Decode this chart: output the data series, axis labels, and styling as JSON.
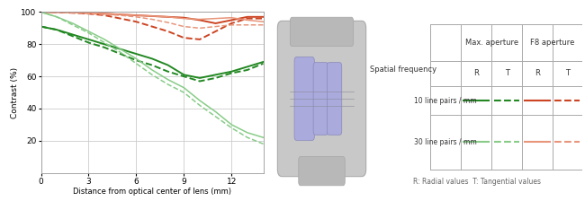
{
  "xlabel": "Distance from optical center of lens (mm)",
  "ylabel": "Contrast (%)",
  "xlim": [
    0,
    14
  ],
  "ylim": [
    0,
    100
  ],
  "xticks": [
    0,
    3,
    6,
    9,
    12
  ],
  "yticks": [
    20,
    40,
    60,
    80,
    100
  ],
  "bg_color": "#ffffff",
  "grid_color": "#cccccc",
  "curves": [
    {
      "x": [
        0,
        1,
        2,
        3,
        4,
        5,
        6,
        7,
        8,
        9,
        10,
        11,
        12,
        13,
        14
      ],
      "y": [
        100,
        100,
        100,
        99.5,
        99,
        98.5,
        98,
        97.5,
        97,
        96.5,
        95,
        93,
        95,
        97,
        97
      ],
      "color": "#cc4422",
      "lw": 1.4,
      "ls": "solid"
    },
    {
      "x": [
        0,
        1,
        2,
        3,
        4,
        5,
        6,
        7,
        8,
        9,
        10,
        11,
        12,
        13,
        14
      ],
      "y": [
        100,
        100,
        99.5,
        99,
        98,
        96,
        94,
        91,
        88,
        84,
        83,
        88,
        93,
        96,
        96
      ],
      "color": "#cc4422",
      "lw": 1.4,
      "ls": "dashed"
    },
    {
      "x": [
        0,
        1,
        2,
        3,
        4,
        5,
        6,
        7,
        8,
        9,
        10,
        11,
        12,
        13,
        14
      ],
      "y": [
        100,
        100,
        99.8,
        99.5,
        99,
        98.5,
        98,
        97.5,
        97,
        96,
        95.5,
        96,
        96.5,
        95,
        94
      ],
      "color": "#e8957a",
      "lw": 1.1,
      "ls": "solid"
    },
    {
      "x": [
        0,
        1,
        2,
        3,
        4,
        5,
        6,
        7,
        8,
        9,
        10,
        11,
        12,
        13,
        14
      ],
      "y": [
        100,
        100,
        99.5,
        99,
        98.5,
        98,
        97,
        95.5,
        93.5,
        91,
        90,
        91,
        92,
        92,
        92
      ],
      "color": "#e8957a",
      "lw": 1.1,
      "ls": "dashed"
    },
    {
      "x": [
        0,
        1,
        2,
        3,
        4,
        5,
        6,
        7,
        8,
        9,
        10,
        11,
        12,
        13,
        14
      ],
      "y": [
        91,
        89,
        86,
        83,
        80,
        77,
        74,
        71,
        67,
        61,
        59,
        61,
        63,
        66,
        69
      ],
      "color": "#228822",
      "lw": 1.4,
      "ls": "solid"
    },
    {
      "x": [
        0,
        1,
        2,
        3,
        4,
        5,
        6,
        7,
        8,
        9,
        10,
        11,
        12,
        13,
        14
      ],
      "y": [
        91,
        89,
        85,
        81,
        78,
        74,
        70,
        67,
        63,
        60,
        57,
        59,
        62,
        64,
        68
      ],
      "color": "#228822",
      "lw": 1.4,
      "ls": "dashed"
    },
    {
      "x": [
        0,
        1,
        2,
        3,
        4,
        5,
        6,
        7,
        8,
        9,
        10,
        11,
        12,
        13,
        14
      ],
      "y": [
        100,
        97,
        93,
        88,
        83,
        77,
        71,
        64,
        58,
        53,
        45,
        38,
        30,
        25,
        22
      ],
      "color": "#88cc88",
      "lw": 1.1,
      "ls": "solid"
    },
    {
      "x": [
        0,
        1,
        2,
        3,
        4,
        5,
        6,
        7,
        8,
        9,
        10,
        11,
        12,
        13,
        14
      ],
      "y": [
        100,
        97,
        92,
        87,
        81,
        75,
        68,
        61,
        55,
        50,
        42,
        35,
        28,
        22,
        18
      ],
      "color": "#88cc88",
      "lw": 1.1,
      "ls": "dashed"
    }
  ],
  "note": "R: Radial values  T: Tangential values",
  "table_rows": [
    "10 line pairs / mm",
    "30 line pairs / mm"
  ],
  "table_lp10_colors": [
    "#228822",
    "#228822",
    "#cc4422",
    "#cc4422"
  ],
  "table_lp30_colors": [
    "#88cc88",
    "#88cc88",
    "#e8957a",
    "#e8957a"
  ],
  "table_ls": [
    "solid",
    "dashed",
    "solid",
    "dashed"
  ]
}
